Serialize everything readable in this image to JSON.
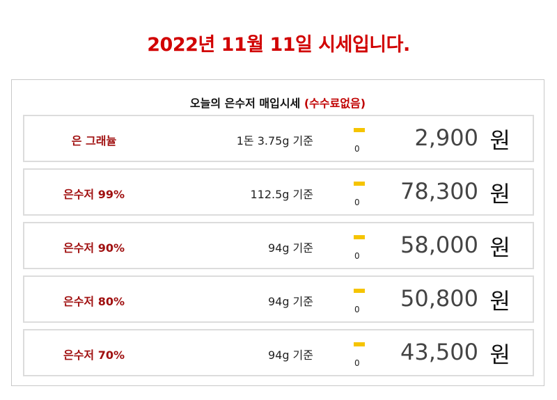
{
  "title": "2022년 11월 11일 시세입니다.",
  "heading": {
    "main": "오늘의 은수저 매입시세",
    "note": "(수수료없음)"
  },
  "colors": {
    "title": "#d10000",
    "item_name": "#a01010",
    "change_marker": "#f5c400"
  },
  "currency": "원",
  "rows": [
    {
      "name": "은 그래뉼",
      "basis": "1돈 3.75g 기준",
      "change": "0",
      "price": "2,900"
    },
    {
      "name": "은수저 99%",
      "basis": "112.5g 기준",
      "change": "0",
      "price": "78,300"
    },
    {
      "name": "은수저 90%",
      "basis": "94g 기준",
      "change": "0",
      "price": "58,000"
    },
    {
      "name": "은수저 80%",
      "basis": "94g 기준",
      "change": "0",
      "price": "50,800"
    },
    {
      "name": "은수저 70%",
      "basis": "94g 기준",
      "change": "0",
      "price": "43,500"
    }
  ]
}
